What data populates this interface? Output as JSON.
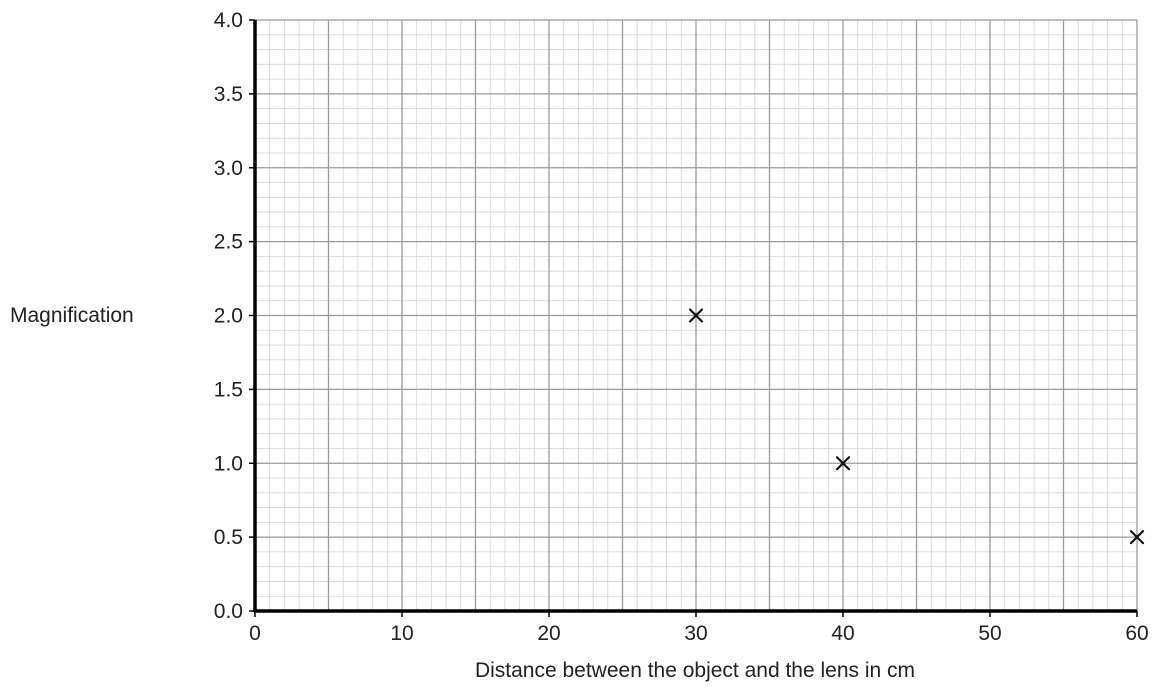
{
  "chart_data": {
    "type": "scatter",
    "title": "",
    "xlabel": "Distance between the object and the lens in cm",
    "ylabel": "Magnification",
    "xlim": [
      0,
      60
    ],
    "ylim": [
      0,
      4.0
    ],
    "x_ticks": [
      0,
      10,
      20,
      30,
      40,
      50,
      60
    ],
    "x_tick_labels": [
      "0",
      "10",
      "20",
      "30",
      "40",
      "50",
      "60"
    ],
    "y_ticks": [
      0,
      0.5,
      1.0,
      1.5,
      2.0,
      2.5,
      3.0,
      3.5,
      4.0
    ],
    "y_tick_labels": [
      "0.0",
      "0.5",
      "1.0",
      "1.5",
      "2.0",
      "2.5",
      "3.0",
      "3.5",
      "4.0"
    ],
    "grid": true,
    "marker": "x",
    "points": [
      {
        "x": 30,
        "y": 2.0
      },
      {
        "x": 40,
        "y": 1.0
      },
      {
        "x": 60,
        "y": 0.5
      }
    ],
    "colors": {
      "major_grid": "#9a9a9a",
      "minor_grid": "#d2d2d2",
      "axis": "#000000",
      "marker": "#111111"
    }
  }
}
